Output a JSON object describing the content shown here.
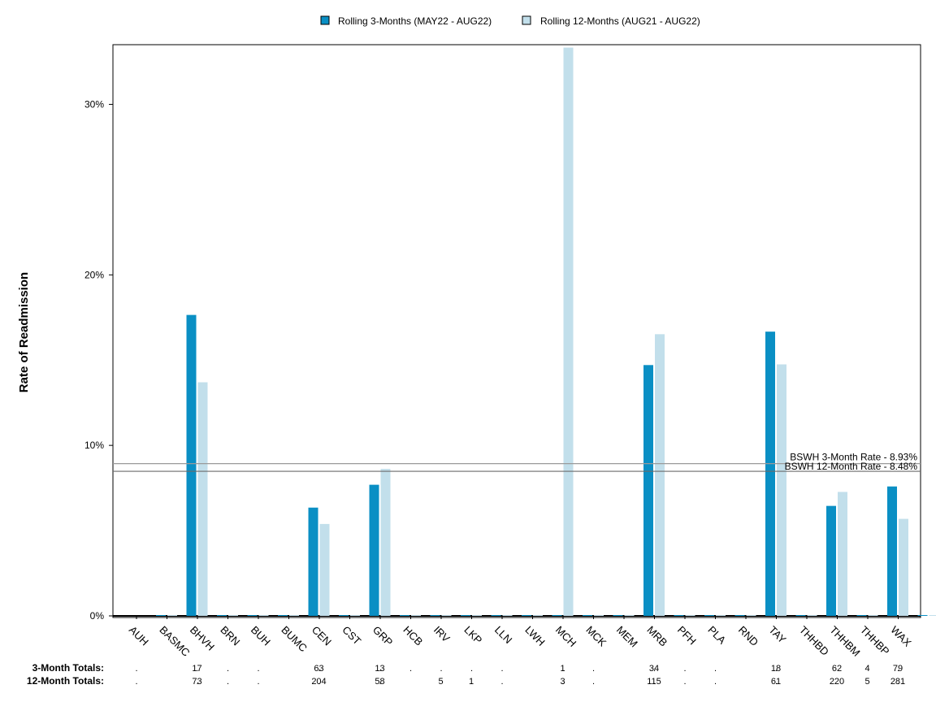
{
  "chart_data": {
    "type": "bar",
    "ylabel": "Rate of Readmission",
    "ylim": [
      0,
      33.5
    ],
    "yticks": [
      0,
      10,
      20,
      30
    ],
    "ytick_labels": [
      "0%",
      "10%",
      "20%",
      "30%"
    ],
    "legend_position": "top-center",
    "categories": [
      "AUH",
      "BASMC",
      "BHVH",
      "BRN",
      "BUH",
      "BUMC",
      "CEN",
      "CST",
      "GRP",
      "HCB",
      "IRV",
      "LKP",
      "LLN",
      "LWH",
      "MCH",
      "MCK",
      "MEM",
      "MRB",
      "PFH",
      "PLA",
      "RND",
      "TAY",
      "THHBD",
      "THHBM",
      "THHBP",
      "WAX"
    ],
    "series": [
      {
        "name": "Rolling 3-Months (MAY22 - AUG22)",
        "color": "#0a8fc4",
        "values": [
          0,
          17.65,
          0,
          0,
          0,
          6.35,
          0,
          7.69,
          0,
          0,
          0,
          0,
          0,
          0,
          0,
          0,
          14.71,
          0,
          0,
          0,
          16.67,
          0,
          6.45,
          0,
          7.59,
          0
        ]
      },
      {
        "name": "Rolling 12-Months (AUG21 - AUG22)",
        "color": "#c2dfeb",
        "values": [
          0,
          13.7,
          0,
          0,
          0,
          5.39,
          0,
          8.62,
          0,
          0,
          0,
          0,
          0,
          33.33,
          0,
          0,
          16.52,
          0,
          0,
          0,
          14.75,
          0,
          7.27,
          0,
          5.69,
          0
        ]
      }
    ],
    "reference_lines": [
      {
        "label": "BSWH  3-Month Rate - 8.93%",
        "value": 8.93
      },
      {
        "label": "BSWH 12-Month Rate - 8.48%",
        "value": 8.48
      }
    ],
    "totals": {
      "three_month_label": "3-Month Totals:",
      "twelve_month_label": "12-Month Totals:",
      "three_month": [
        ".",
        "17",
        ".",
        ".",
        ".",
        "63",
        ".",
        "13",
        ".",
        ".",
        ".",
        ".",
        ".",
        "1",
        ".",
        ".",
        "34",
        ".",
        ".",
        ".",
        "18",
        ".",
        "62",
        "4",
        "79",
        "."
      ],
      "twelve_month": [
        ".",
        "73",
        ".",
        ".",
        ".",
        "204",
        ".",
        "58",
        ".",
        "5",
        "1",
        ".",
        ".",
        "3",
        ".",
        ".",
        "115",
        ".",
        ".",
        ".",
        "61",
        ".",
        "220",
        "5",
        "281",
        "."
      ]
    }
  }
}
